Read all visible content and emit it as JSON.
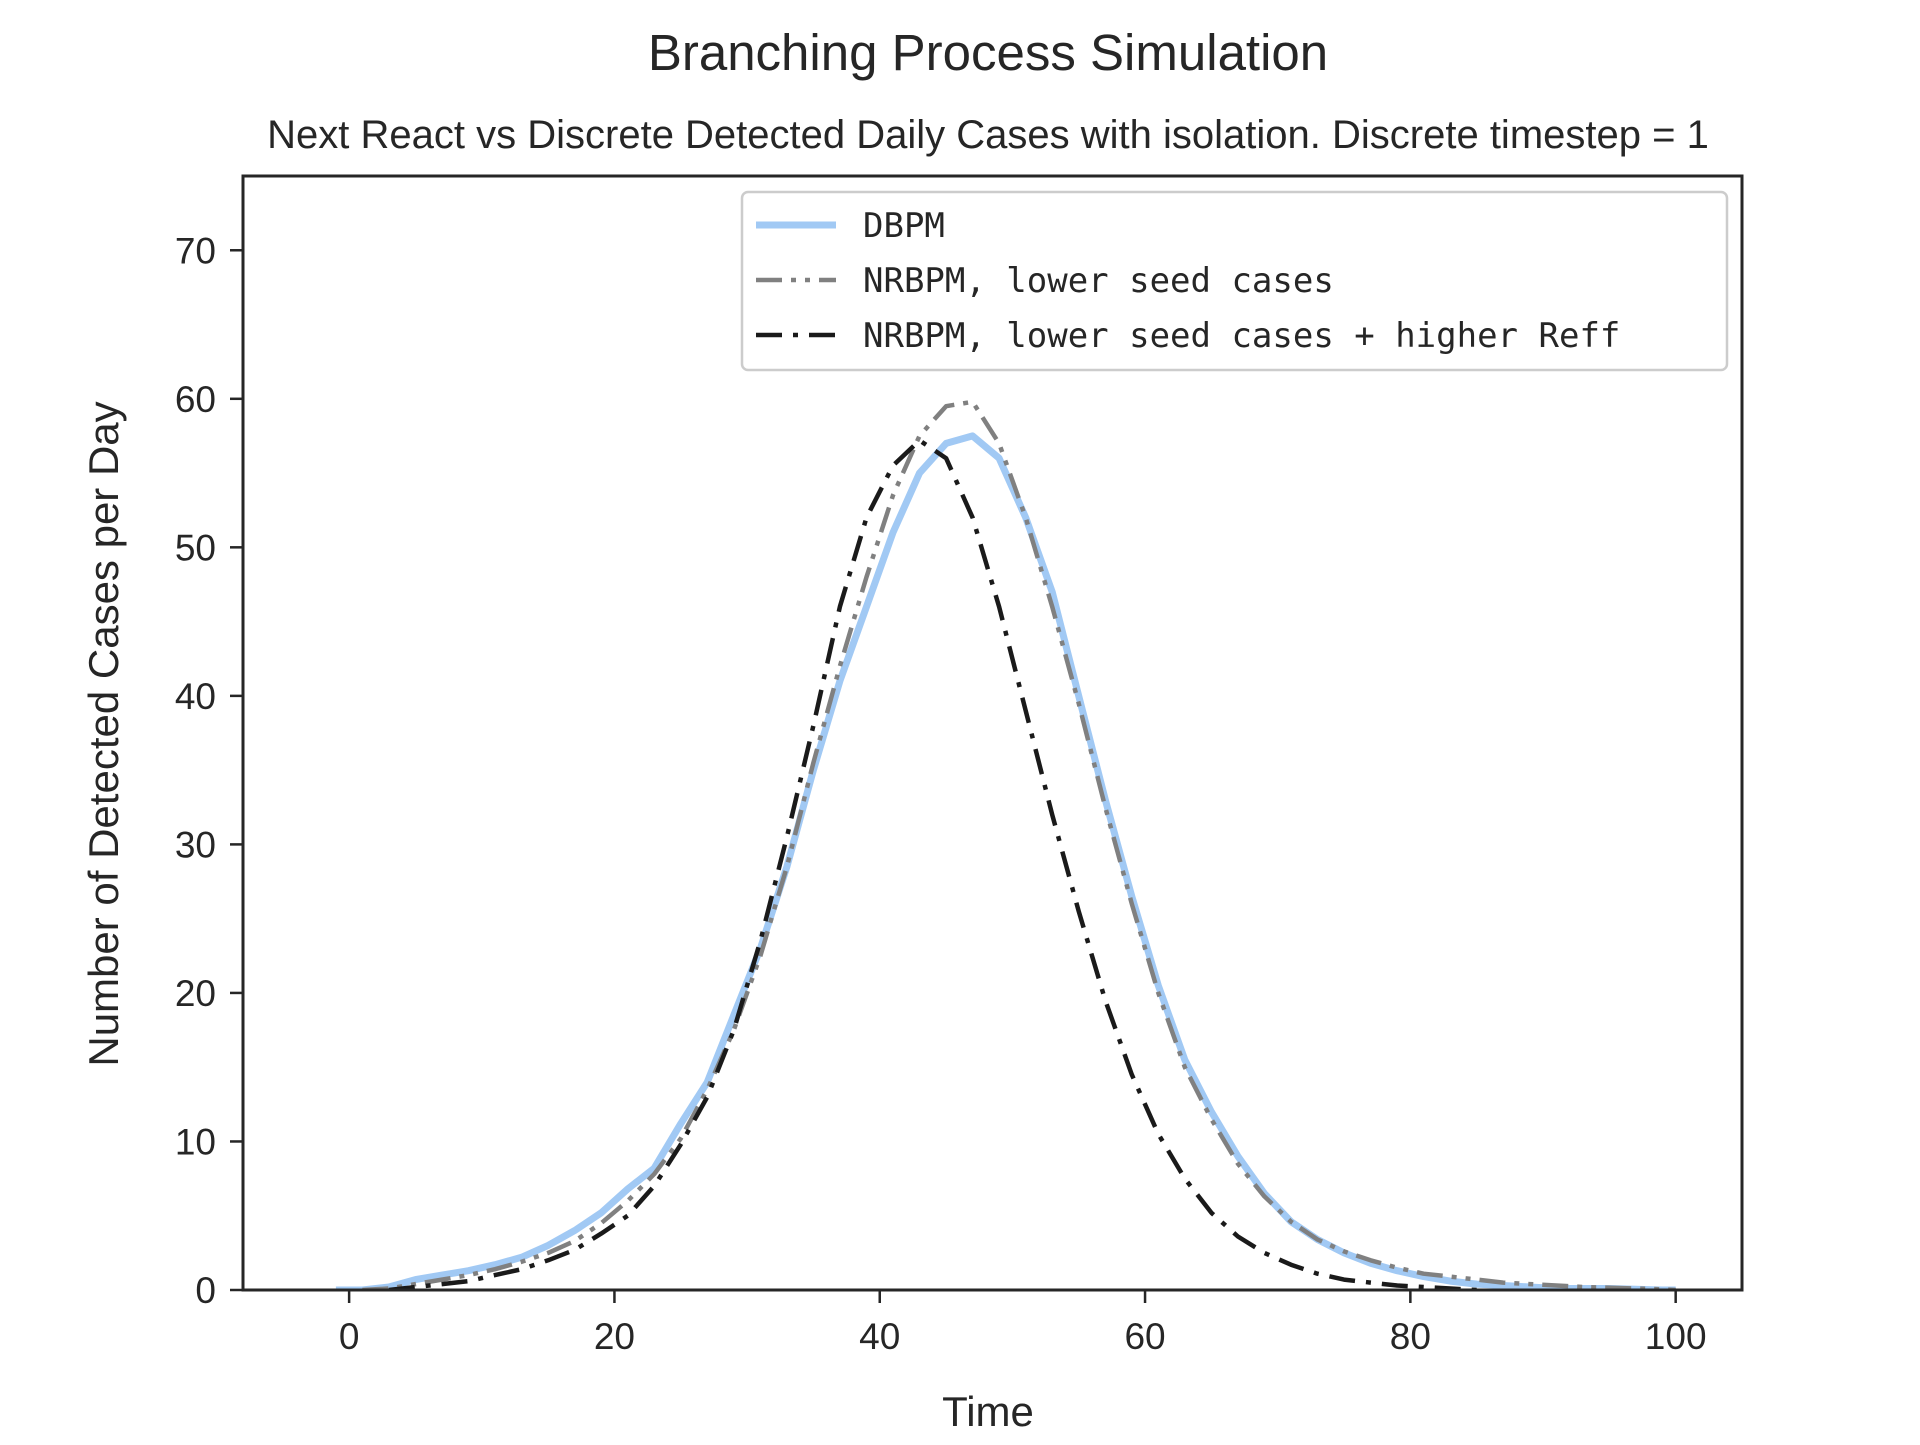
{
  "chart_data": {
    "type": "line",
    "title": "Branching Process Simulation",
    "subtitle": "Next React vs Discrete Detected Daily Cases with isolation. Discrete timestep = 1",
    "xlabel": "Time",
    "ylabel": "Number of Detected Cases per Day",
    "xlim": [
      -8,
      105
    ],
    "ylim": [
      0,
      75
    ],
    "xticks": [
      0,
      20,
      40,
      60,
      80,
      100
    ],
    "yticks": [
      0,
      10,
      20,
      30,
      40,
      50,
      60,
      70
    ],
    "grid": false,
    "legend_position": "top-right",
    "series": [
      {
        "name": "DBPM",
        "color": "#a1c9f4",
        "style": "solid",
        "x": [
          -1,
          1,
          3,
          5,
          7,
          9,
          11,
          13,
          15,
          17,
          19,
          21,
          23,
          25,
          27,
          29,
          31,
          33,
          35,
          37,
          39,
          41,
          43,
          45,
          47,
          49,
          51,
          53,
          55,
          57,
          59,
          61,
          63,
          65,
          67,
          69,
          71,
          73,
          75,
          77,
          79,
          81,
          83,
          85,
          87,
          89,
          91,
          93,
          95,
          97,
          99,
          100
        ],
        "y": [
          0,
          0,
          0.2,
          0.7,
          1.0,
          1.3,
          1.7,
          2.2,
          3.0,
          4.0,
          5.2,
          6.8,
          8.2,
          11.2,
          14.0,
          18.5,
          23.0,
          28.5,
          35.0,
          41.0,
          46.0,
          51.0,
          55.0,
          57.0,
          57.5,
          56.0,
          52.0,
          47.0,
          40.0,
          33.0,
          26.5,
          20.5,
          15.5,
          12.0,
          9.0,
          6.5,
          4.6,
          3.4,
          2.5,
          1.8,
          1.3,
          0.9,
          0.6,
          0.4,
          0.3,
          0.2,
          0.1,
          0.1,
          0.1,
          0.05,
          0,
          0
        ]
      },
      {
        "name": "NRBPM, lower seed cases",
        "color": "#808080",
        "style": "dashdotdot",
        "x": [
          1,
          3,
          5,
          7,
          9,
          11,
          13,
          15,
          17,
          19,
          21,
          23,
          25,
          27,
          29,
          31,
          33,
          35,
          37,
          39,
          41,
          43,
          45,
          47,
          49,
          51,
          53,
          55,
          57,
          59,
          61,
          63,
          65,
          67,
          69,
          71,
          73,
          75,
          77,
          79,
          81,
          83,
          85,
          87,
          89,
          91,
          93,
          95,
          97,
          99,
          100
        ],
        "y": [
          0,
          0.1,
          0.4,
          0.7,
          1.0,
          1.4,
          1.9,
          2.5,
          3.3,
          4.5,
          6.0,
          7.8,
          10.2,
          13.5,
          17.5,
          22.5,
          28.5,
          35.5,
          42.0,
          48.0,
          53.5,
          57.5,
          59.5,
          59.8,
          57.0,
          52.0,
          46.0,
          39.5,
          32.5,
          26.0,
          20.0,
          15.0,
          11.5,
          8.5,
          6.3,
          4.6,
          3.4,
          2.6,
          2.0,
          1.5,
          1.1,
          0.9,
          0.7,
          0.5,
          0.4,
          0.3,
          0.2,
          0.15,
          0.1,
          0.05,
          0
        ]
      },
      {
        "name": "NRBPM, lower seed cases + higher Reff",
        "color": "#1a1a1a",
        "style": "dashdot",
        "x": [
          3,
          5,
          7,
          9,
          11,
          13,
          15,
          17,
          19,
          21,
          23,
          25,
          27,
          29,
          31,
          33,
          35,
          37,
          39,
          41,
          43,
          45,
          47,
          49,
          51,
          53,
          55,
          57,
          59,
          61,
          63,
          65,
          67,
          69,
          71,
          73,
          75,
          77,
          79,
          81,
          83,
          85
        ],
        "y": [
          0,
          0.2,
          0.4,
          0.6,
          1.0,
          1.4,
          2.0,
          2.7,
          3.8,
          5.0,
          7.0,
          9.8,
          13.0,
          17.5,
          23.5,
          30.5,
          38.0,
          46.0,
          52.0,
          55.5,
          57.2,
          56.0,
          52.0,
          46.0,
          39.0,
          32.0,
          25.5,
          19.5,
          14.5,
          10.5,
          7.5,
          5.2,
          3.6,
          2.5,
          1.7,
          1.1,
          0.7,
          0.5,
          0.3,
          0.2,
          0.1,
          0
        ]
      }
    ]
  }
}
